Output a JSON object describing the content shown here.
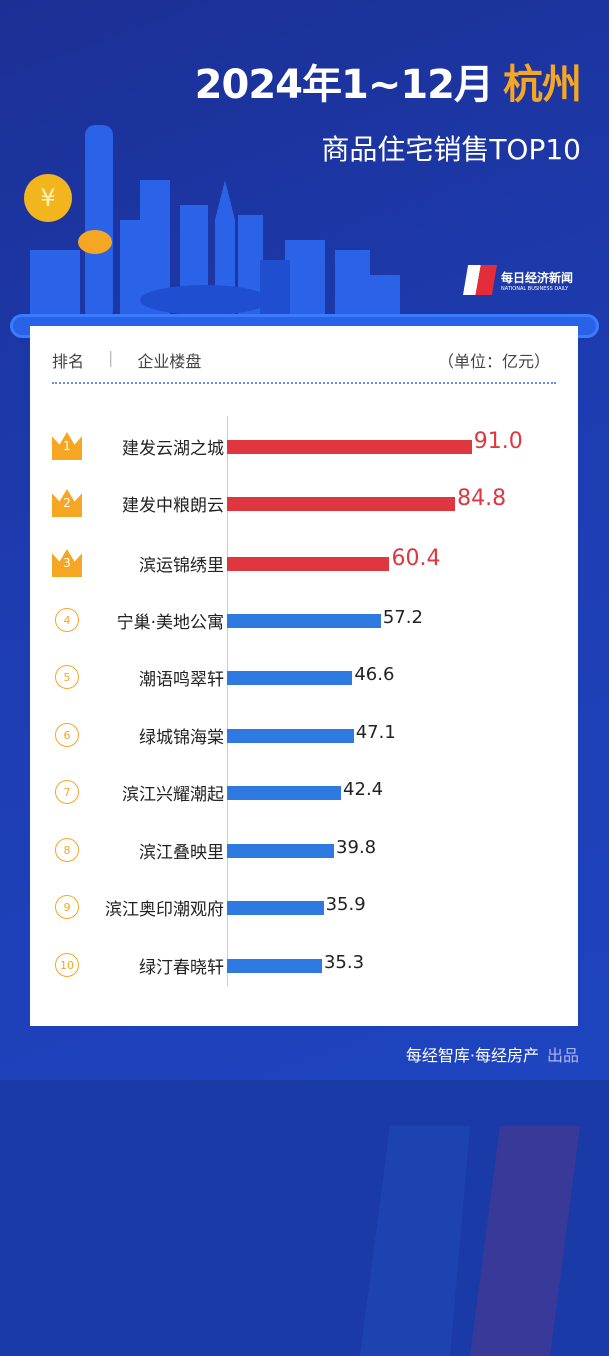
{
  "title": {
    "line1": "2024年1~12月",
    "city": "杭州",
    "line2": "商品住宅销售TOP10"
  },
  "logo": {
    "text": "每日经济新闻",
    "sub": "NATIONAL BUSINESS DAILY"
  },
  "header": {
    "rank": "排名",
    "sep": "|",
    "name": "企业楼盘",
    "unit": "（单位：亿元）"
  },
  "footer": {
    "source": "每经智库·每经房产",
    "by": "出品"
  },
  "colors": {
    "top3": "#e0363f",
    "rest": "#2f7ae0",
    "accent": "#f5a623"
  },
  "chart_data": {
    "type": "bar",
    "orientation": "horizontal",
    "unit": "亿元",
    "categories": [
      "建发云湖之城",
      "建发中粮朗云",
      "滨运锦绣里",
      "宁巢·美地公寓",
      "潮语鸣翠轩",
      "绿城锦海棠",
      "滨江兴耀潮起",
      "滨江叠映里",
      "滨江奥印潮观府",
      "绿汀春晓轩"
    ],
    "ranks": [
      "1",
      "2",
      "3",
      "4",
      "5",
      "6",
      "7",
      "8",
      "9",
      "10"
    ],
    "values": [
      91.0,
      84.8,
      60.4,
      57.2,
      46.6,
      47.1,
      42.4,
      39.8,
      35.9,
      35.3
    ],
    "labels": [
      "91.0",
      "84.8",
      "60.4",
      "57.2",
      "46.6",
      "47.1",
      "42.4",
      "39.8",
      "35.9",
      "35.3"
    ]
  }
}
